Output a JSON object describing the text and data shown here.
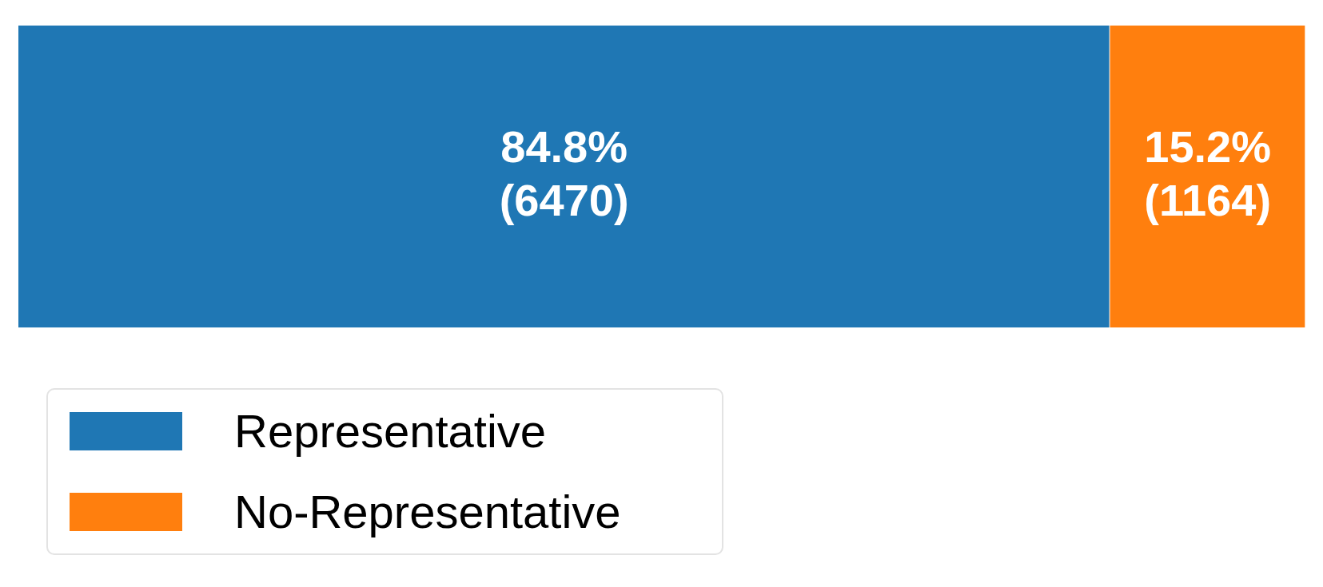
{
  "chart_data": {
    "type": "bar",
    "orientation": "horizontal",
    "stacked": true,
    "categories": [
      null
    ],
    "xlim": [
      0,
      100
    ],
    "tick_labels": false,
    "grid": false,
    "legend": "bottom left",
    "series": [
      {
        "name": "Representative",
        "color": "#1f77b4",
        "values": [
          84.8
        ],
        "value_labels": [
          "84.8%\n(6470)"
        ]
      },
      {
        "name": "No-Representative",
        "color": "#ff7f0e",
        "values": [
          15.2
        ],
        "value_labels": [
          "15.2%\n(1164)"
        ]
      }
    ]
  }
}
